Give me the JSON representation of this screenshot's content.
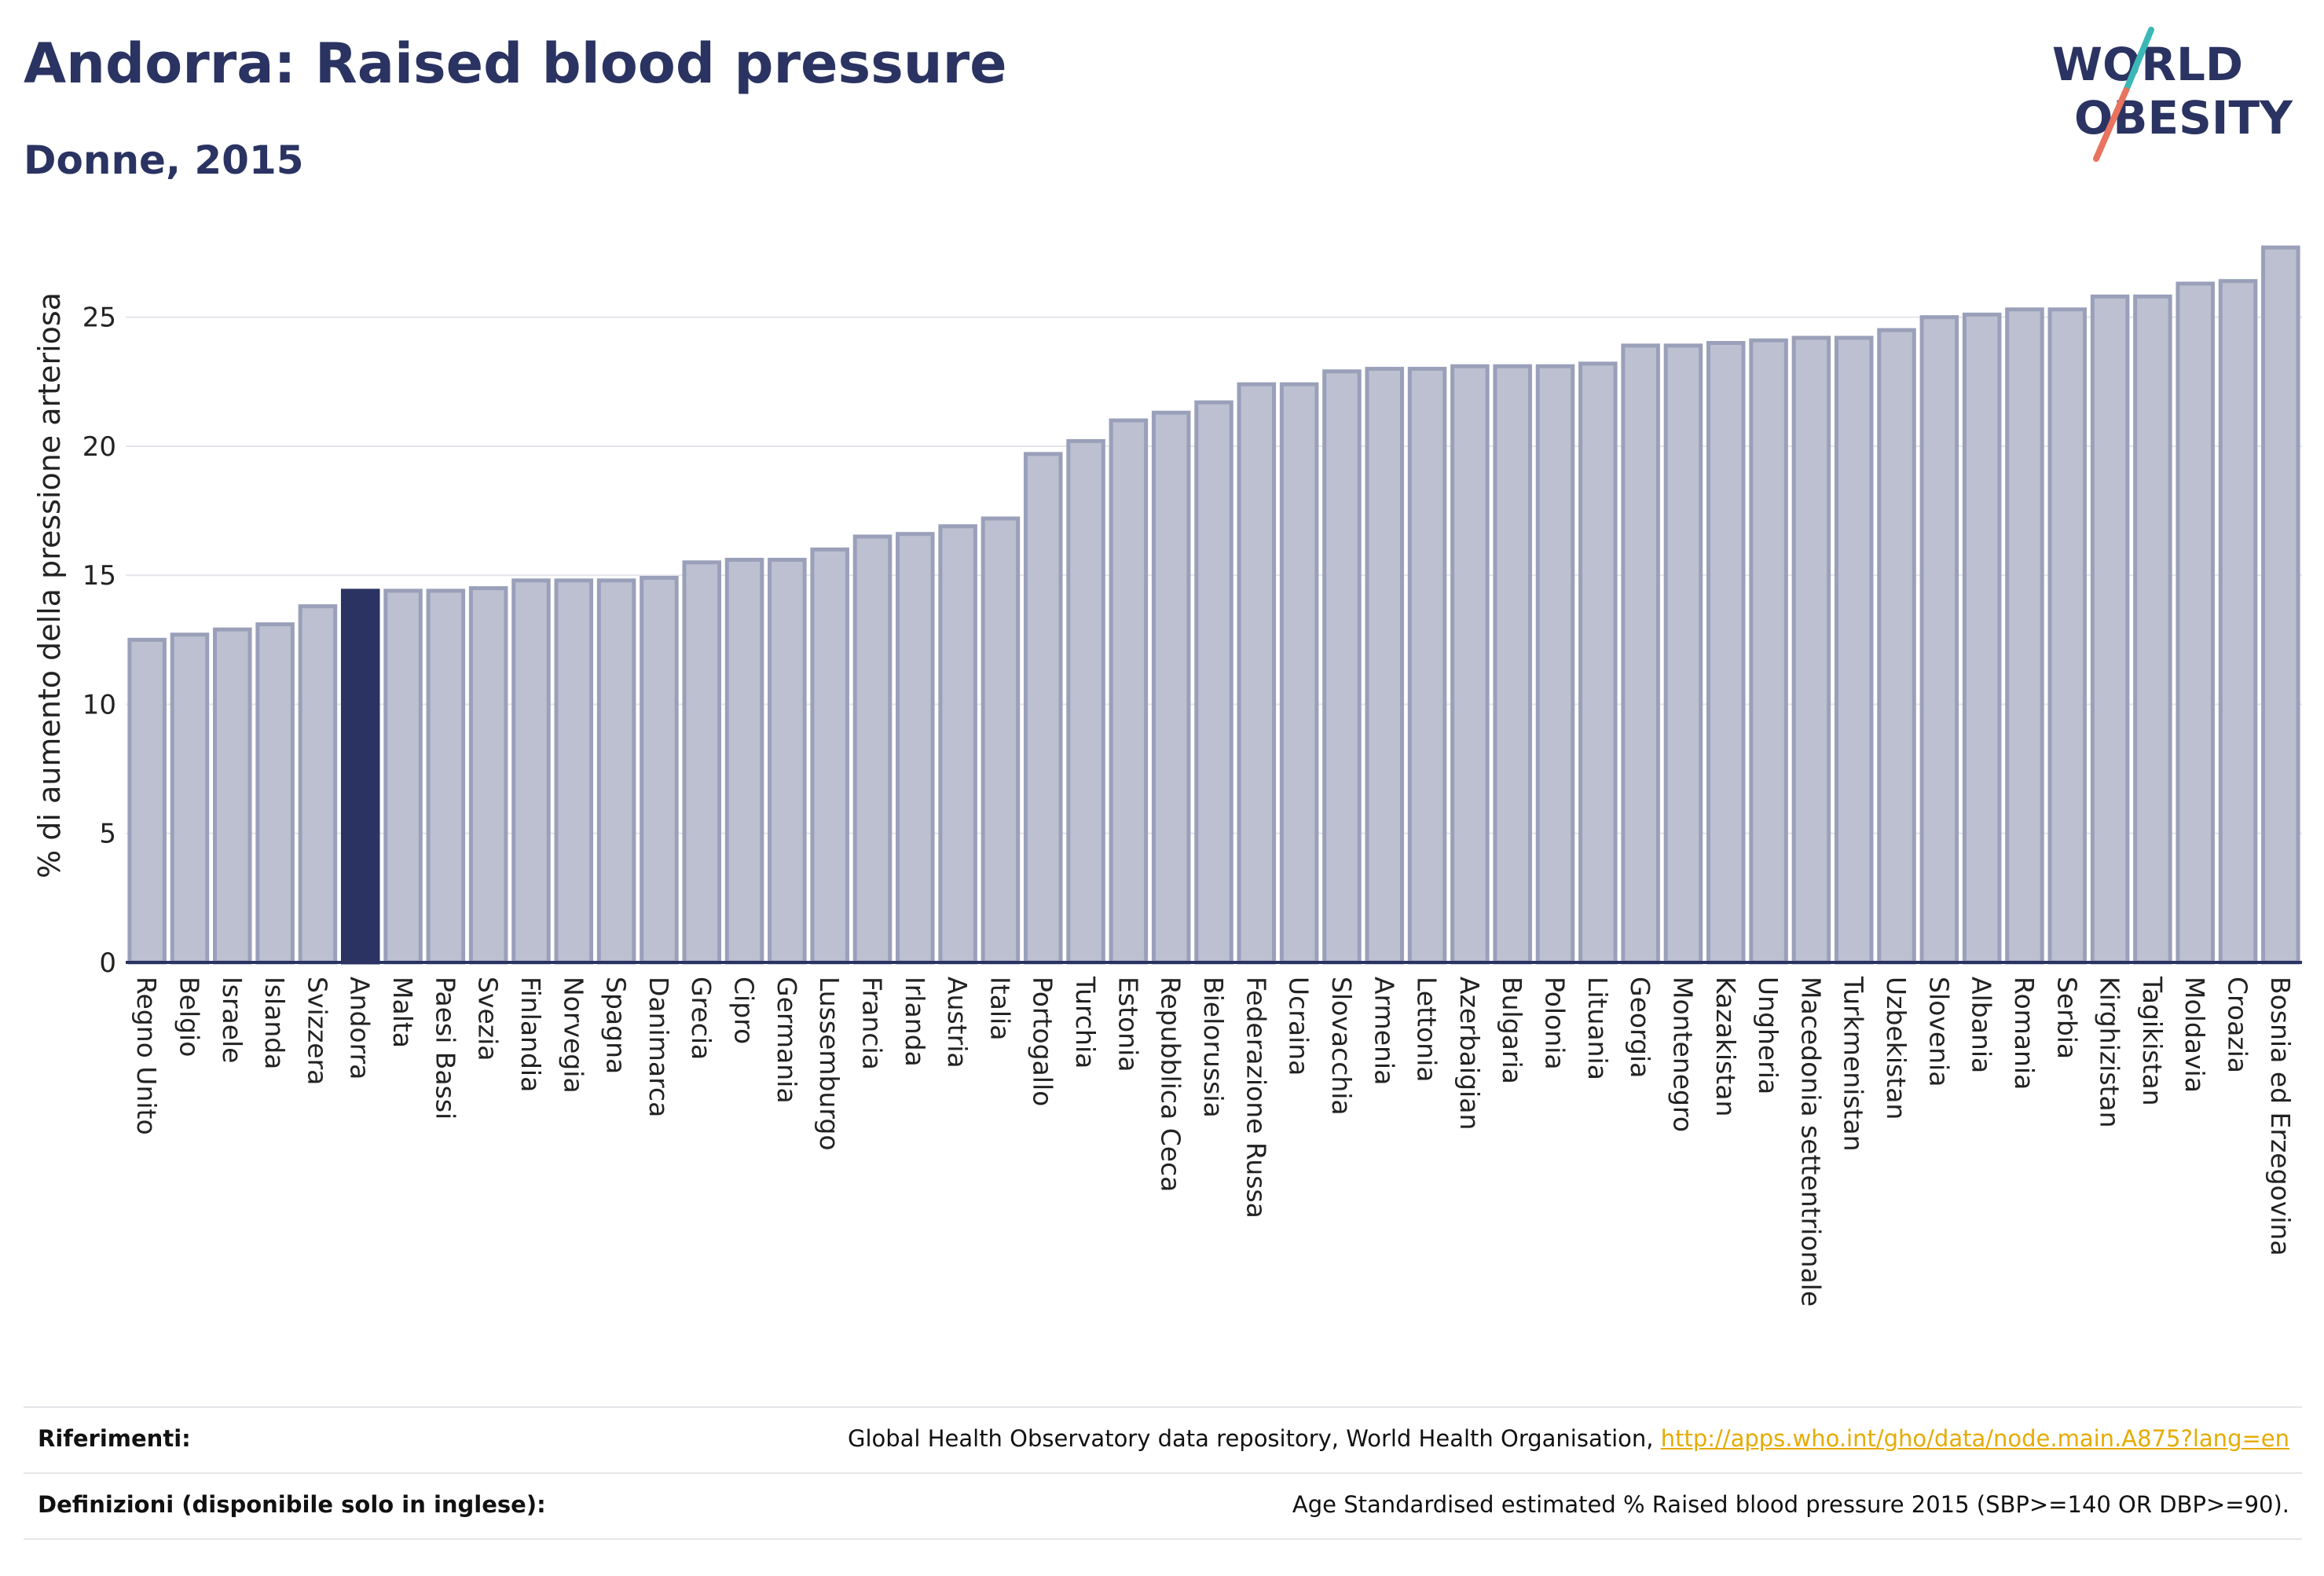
{
  "header": {
    "title": "Andorra: Raised blood pressure",
    "subtitle": "Donne, 2015"
  },
  "logo": {
    "line1": "WORLD",
    "line2": "OBESITY",
    "colors": {
      "text": "#2a3361",
      "slash_teal": "#3bb8b6",
      "slash_coral": "#e8735f"
    }
  },
  "colors": {
    "bar_fill": "#bcc0d0",
    "bar_stroke": "#9aa0b9",
    "highlight_fill": "#2a3361",
    "highlight_stroke": "#2a3361",
    "grid": "#e4e6ec",
    "axis": "#2a3361"
  },
  "chart_data": {
    "type": "bar",
    "title": "Andorra: Raised blood pressure",
    "subtitle": "Donne, 2015",
    "xlabel": "",
    "ylabel": "% di aumento della pressione arteriosa",
    "ylim": [
      0,
      27.7
    ],
    "yticks": [
      0,
      5,
      10,
      15,
      20,
      25
    ],
    "grid": true,
    "highlight": "Andorra",
    "categories": [
      "Regno Unito",
      "Belgio",
      "Israele",
      "Islanda",
      "Svizzera",
      "Andorra",
      "Malta",
      "Paesi Bassi",
      "Svezia",
      "Finlandia",
      "Norvegia",
      "Spagna",
      "Danimarca",
      "Grecia",
      "Cipro",
      "Germania",
      "Lussemburgo",
      "Francia",
      "Irlanda",
      "Austria",
      "Italia",
      "Portogallo",
      "Turchia",
      "Estonia",
      "Repubblica Ceca",
      "Bielorussia",
      "Federazione Russa",
      "Ucraina",
      "Slovacchia",
      "Armenia",
      "Lettonia",
      "Azerbaigian",
      "Bulgaria",
      "Polonia",
      "Lituania",
      "Georgia",
      "Montenegro",
      "Kazakistan",
      "Ungheria",
      "Macedonia settentrionale",
      "Turkmenistan",
      "Uzbekistan",
      "Slovenia",
      "Albania",
      "Romania",
      "Serbia",
      "Kirghizistan",
      "Tagikistan",
      "Moldavia",
      "Croazia",
      "Bosnia ed Erzegovina"
    ],
    "values": [
      12.5,
      12.7,
      12.9,
      13.1,
      13.8,
      14.4,
      14.4,
      14.4,
      14.5,
      14.8,
      14.8,
      14.8,
      14.9,
      15.5,
      15.6,
      15.6,
      16.0,
      16.5,
      16.6,
      16.9,
      17.2,
      19.7,
      20.2,
      21.0,
      21.3,
      21.7,
      22.4,
      22.4,
      22.9,
      23.0,
      23.0,
      23.1,
      23.1,
      23.1,
      23.2,
      23.9,
      23.9,
      24.0,
      24.1,
      24.2,
      24.2,
      24.5,
      25.0,
      25.1,
      25.3,
      25.3,
      25.8,
      25.8,
      26.3,
      26.4,
      27.7
    ]
  },
  "footer": {
    "references_label": "Riferimenti:",
    "references_text": "Global Health Observatory data repository, World Health Organisation, ",
    "references_link": "http://apps.who.int/gho/data/node.main.A875?lang=en",
    "definitions_label": "Definizioni (disponibile solo in inglese):",
    "definitions_text": "Age Standardised estimated % Raised blood pressure 2015 (SBP>=140 OR DBP>=90)."
  }
}
